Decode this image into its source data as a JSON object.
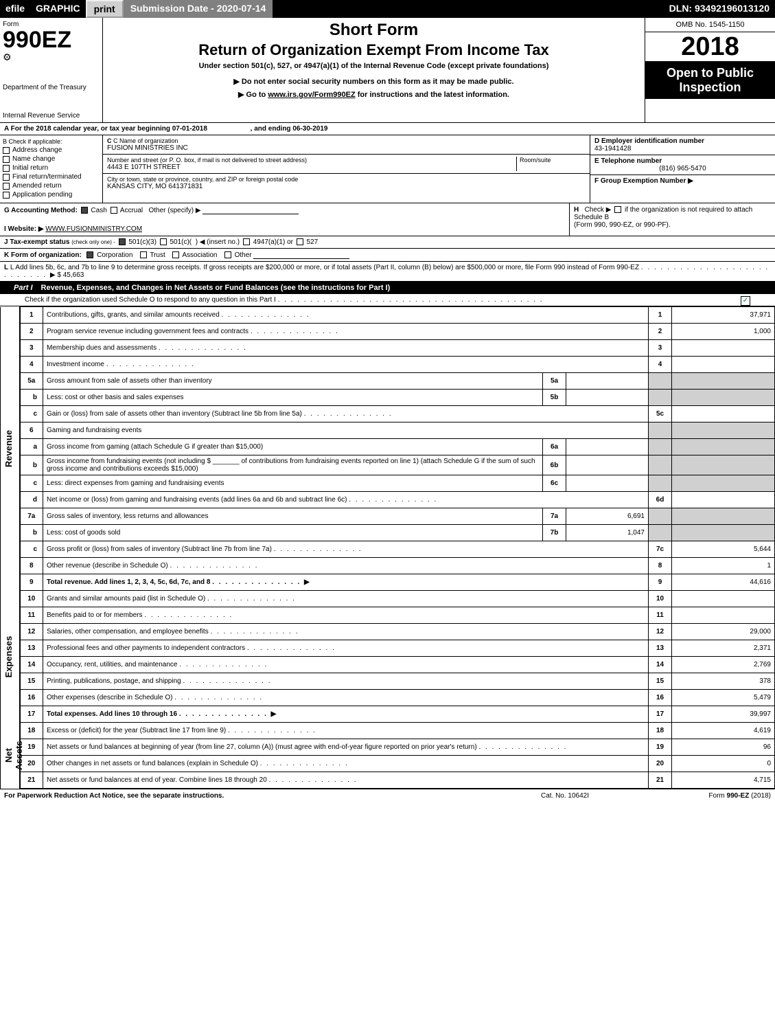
{
  "topbar": {
    "efile": "efile",
    "graphic": "GRAPHIC",
    "print": "print",
    "submission": "Submission Date - 2020-07-14",
    "dln": "DLN: 93492196013120"
  },
  "header": {
    "form_word": "Form",
    "form_number": "990EZ",
    "dept": "Department of the Treasury",
    "irs": "Internal Revenue Service",
    "short_form": "Short Form",
    "title": "Return of Organization Exempt From Income Tax",
    "sub1": "Under section 501(c), 527, or 4947(a)(1) of the Internal Revenue Code (except private foundations)",
    "sub2": "▶ Do not enter social security numbers on this form as it may be made public.",
    "sub3": "▶ Go to www.irs.gov/Form990EZ for instructions and the latest information.",
    "omb": "OMB No. 1545-1150",
    "year": "2018",
    "open_to": "Open to Public Inspection"
  },
  "row_a": {
    "text_a": "A For the 2018 calendar year, or tax year beginning 07-01-2018",
    "text_end": ", and ending 06-30-2019"
  },
  "section_b": {
    "b_label": "B Check if applicable:",
    "checks": [
      "Address change",
      "Name change",
      "Initial return",
      "Final return/terminated",
      "Amended return",
      "Application pending"
    ],
    "c_name_label": "C Name of organization",
    "c_name_value": "FUSION MINISTRIES INC",
    "c_street_label": "Number and street (or P. O. box, if mail is not delivered to street address)",
    "c_street_value": "4443 E 107TH STREET",
    "c_room_label": "Room/suite",
    "c_room_value": "",
    "c_city_label": "City or town, state or province, country, and ZIP or foreign postal code",
    "c_city_value": "KANSAS CITY, MO  641371831",
    "d_label": "D Employer identification number",
    "d_value": "43-1941428",
    "e_label": "E Telephone number",
    "e_value": "(816) 965-5470",
    "f_label": "F Group Exemption Number ▶",
    "f_value": ""
  },
  "row_g": {
    "label": "G Accounting Method:",
    "cash": "Cash",
    "accrual": "Accrual",
    "other": "Other (specify) ▶"
  },
  "row_h": {
    "label": "H",
    "text1": "Check ▶",
    "text2": "if the organization is not required to attach Schedule B",
    "text3": "(Form 990, 990-EZ, or 990-PF)."
  },
  "row_i": {
    "label": "I Website: ▶",
    "value": "WWW.FUSIONMINISTRY.COM"
  },
  "row_j": {
    "label": "J Tax-exempt status",
    "suffix": "(check only one) -",
    "opts": "501(c)(3)  501(c)(  ) ◀ (insert no.)  4947(a)(1) or  527"
  },
  "row_k": {
    "label": "K Form of organization:",
    "opts": [
      "Corporation",
      "Trust",
      "Association",
      "Other"
    ]
  },
  "row_l": {
    "text": "L Add lines 5b, 6c, and 7b to line 9 to determine gross receipts. If gross receipts are $200,000 or more, or if total assets (Part II, column (B) below) are $500,000 or more, file Form 990 instead of Form 990-EZ",
    "arrow": "▶",
    "value": "$ 45,663"
  },
  "part1": {
    "label": "Part I",
    "title": "Revenue, Expenses, and Changes in Net Assets or Fund Balances (see the instructions for Part I)",
    "check_o": "Check if the organization used Schedule O to respond to any question in this Part I"
  },
  "sidelabels": {
    "revenue": "Revenue",
    "expenses": "Expenses",
    "netassets": "Net Assets"
  },
  "lines": [
    {
      "n": "1",
      "desc": "Contributions, gifts, grants, and similar amounts received",
      "box": "1",
      "amt": "37,971",
      "side": "rev_start",
      "rowspan": 19
    },
    {
      "n": "2",
      "desc": "Program service revenue including government fees and contracts",
      "box": "2",
      "amt": "1,000"
    },
    {
      "n": "3",
      "desc": "Membership dues and assessments",
      "box": "3",
      "amt": ""
    },
    {
      "n": "4",
      "desc": "Investment income",
      "box": "4",
      "amt": ""
    },
    {
      "n": "5a",
      "desc": "Gross amount from sale of assets other than inventory",
      "mini": "5a",
      "miniamt": "",
      "gray": true
    },
    {
      "n": "b",
      "desc": "Less: cost or other basis and sales expenses",
      "mini": "5b",
      "miniamt": "",
      "gray": true
    },
    {
      "n": "c",
      "desc": "Gain or (loss) from sale of assets other than inventory (Subtract line 5b from line 5a)",
      "box": "5c",
      "amt": ""
    },
    {
      "n": "6",
      "desc": "Gaming and fundraising events",
      "gray": true,
      "textonly": true
    },
    {
      "n": "a",
      "desc": "Gross income from gaming (attach Schedule G if greater than $15,000)",
      "mini": "6a",
      "miniamt": "",
      "gray": true
    },
    {
      "n": "b",
      "desc": "Gross income from fundraising events (not including $ _______ of contributions from fundraising events reported on line 1) (attach Schedule G if the sum of such gross income and contributions exceeds $15,000)",
      "mini": "6b",
      "miniamt": "",
      "gray": true
    },
    {
      "n": "c",
      "desc": "Less: direct expenses from gaming and fundraising events",
      "mini": "6c",
      "miniamt": "",
      "gray": true
    },
    {
      "n": "d",
      "desc": "Net income or (loss) from gaming and fundraising events (add lines 6a and 6b and subtract line 6c)",
      "box": "6d",
      "amt": ""
    },
    {
      "n": "7a",
      "desc": "Gross sales of inventory, less returns and allowances",
      "mini": "7a",
      "miniamt": "6,691",
      "gray": true
    },
    {
      "n": "b",
      "desc": "Less: cost of goods sold",
      "mini": "7b",
      "miniamt": "1,047",
      "gray": true
    },
    {
      "n": "c",
      "desc": "Gross profit or (loss) from sales of inventory (Subtract line 7b from line 7a)",
      "box": "7c",
      "amt": "5,644"
    },
    {
      "n": "8",
      "desc": "Other revenue (describe in Schedule O)",
      "box": "8",
      "amt": "1"
    },
    {
      "n": "9",
      "desc": "Total revenue. Add lines 1, 2, 3, 4, 5c, 6d, 7c, and 8",
      "box": "9",
      "amt": "44,616",
      "bold": true,
      "arrow": true
    },
    {
      "n": "10",
      "desc": "Grants and similar amounts paid (list in Schedule O)",
      "box": "10",
      "amt": "",
      "side": "exp_start",
      "rowspan": 8
    },
    {
      "n": "11",
      "desc": "Benefits paid to or for members",
      "box": "11",
      "amt": ""
    },
    {
      "n": "12",
      "desc": "Salaries, other compensation, and employee benefits",
      "box": "12",
      "amt": "29,000"
    },
    {
      "n": "13",
      "desc": "Professional fees and other payments to independent contractors",
      "box": "13",
      "amt": "2,371"
    },
    {
      "n": "14",
      "desc": "Occupancy, rent, utilities, and maintenance",
      "box": "14",
      "amt": "2,769"
    },
    {
      "n": "15",
      "desc": "Printing, publications, postage, and shipping",
      "box": "15",
      "amt": "378"
    },
    {
      "n": "16",
      "desc": "Other expenses (describe in Schedule O)",
      "box": "16",
      "amt": "5,479"
    },
    {
      "n": "17",
      "desc": "Total expenses. Add lines 10 through 16",
      "box": "17",
      "amt": "39,997",
      "bold": true,
      "arrow": true
    },
    {
      "n": "18",
      "desc": "Excess or (deficit) for the year (Subtract line 17 from line 9)",
      "box": "18",
      "amt": "4,619",
      "side": "net_start",
      "rowspan": 4
    },
    {
      "n": "19",
      "desc": "Net assets or fund balances at beginning of year (from line 27, column (A)) (must agree with end-of-year figure reported on prior year's return)",
      "box": "19",
      "amt": "96"
    },
    {
      "n": "20",
      "desc": "Other changes in net assets or fund balances (explain in Schedule O)",
      "box": "20",
      "amt": "0"
    },
    {
      "n": "21",
      "desc": "Net assets or fund balances at end of year. Combine lines 18 through 20",
      "box": "21",
      "amt": "4,715"
    }
  ],
  "footer": {
    "left": "For Paperwork Reduction Act Notice, see the separate instructions.",
    "center": "Cat. No. 10642I",
    "right": "Form 990-EZ (2018)"
  }
}
